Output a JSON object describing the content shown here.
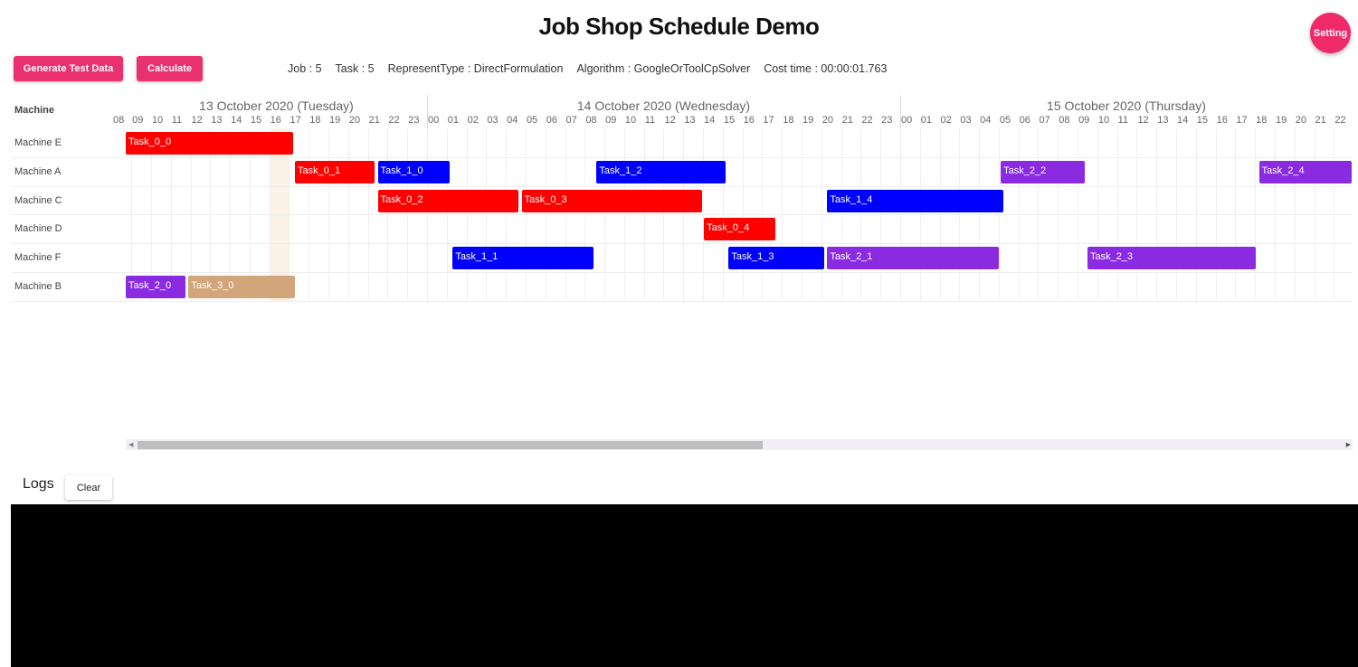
{
  "title": "Job Shop Schedule Demo",
  "setting_label": "Setting",
  "toolbar": {
    "generate_label": "Generate Test Data",
    "calculate_label": "Calculate"
  },
  "info": [
    "Job : 5",
    "Task : 5",
    "RepresentType : DirectFormulation",
    "Algorithm : GoogleOrToolCpSolver",
    "Cost time : 00:00:01.763"
  ],
  "gantt": {
    "machine_header": "Machine",
    "days": [
      {
        "label": "13 October 2020 (Tuesday)",
        "date": "2020-10-13",
        "hours": [
          "08",
          "09",
          "10",
          "11",
          "12",
          "13",
          "14",
          "15",
          "16",
          "17",
          "18",
          "19",
          "20",
          "21",
          "22",
          "23"
        ]
      },
      {
        "label": "14 October 2020 (Wednesday)",
        "date": "2020-10-14",
        "hours": [
          "00",
          "01",
          "02",
          "03",
          "04",
          "05",
          "06",
          "07",
          "08",
          "09",
          "10",
          "11",
          "12",
          "13",
          "14",
          "15",
          "16",
          "17",
          "18",
          "19",
          "20",
          "21",
          "22",
          "23"
        ]
      },
      {
        "label": "15 October 2020 (Thursday)",
        "date": "2020-10-15",
        "hours": [
          "00",
          "01",
          "02",
          "03",
          "04",
          "05",
          "06",
          "07",
          "08",
          "09",
          "10",
          "11",
          "12",
          "13",
          "14",
          "15",
          "16",
          "17",
          "18",
          "19",
          "20",
          "21",
          "22"
        ]
      }
    ],
    "machines": [
      "Machine E",
      "Machine A",
      "Machine C",
      "Machine D",
      "Machine F",
      "Machine B"
    ],
    "job_colors": {
      "0": "#ff0000",
      "1": "#0000ff",
      "2": "#8a2be2",
      "3": "#d2a67a"
    },
    "highlight_color": "#fbf1e4",
    "tasks": [
      {
        "name": "Task_0_0",
        "machine": "Machine E",
        "job": "0",
        "start": "2020-10-13T08:43",
        "end": "2020-10-13T17:15"
      },
      {
        "name": "Task_0_1",
        "machine": "Machine A",
        "job": "0",
        "start": "2020-10-13T17:18",
        "end": "2020-10-13T21:24"
      },
      {
        "name": "Task_1_0",
        "machine": "Machine A",
        "job": "1",
        "start": "2020-10-13T21:30",
        "end": "2020-10-14T01:12"
      },
      {
        "name": "Task_1_2",
        "machine": "Machine A",
        "job": "1",
        "start": "2020-10-14T08:36",
        "end": "2020-10-14T15:12"
      },
      {
        "name": "Task_2_2",
        "machine": "Machine A",
        "job": "2",
        "start": "2020-10-15T05:06",
        "end": "2020-10-15T09:24"
      },
      {
        "name": "Task_2_4",
        "machine": "Machine A",
        "job": "2",
        "start": "2020-10-15T18:12",
        "end": "2020-10-15T23:00"
      },
      {
        "name": "Task_0_2",
        "machine": "Machine C",
        "job": "0",
        "start": "2020-10-13T21:30",
        "end": "2020-10-14T04:42"
      },
      {
        "name": "Task_0_3",
        "machine": "Machine C",
        "job": "0",
        "start": "2020-10-14T04:48",
        "end": "2020-10-14T14:00"
      },
      {
        "name": "Task_1_4",
        "machine": "Machine C",
        "job": "1",
        "start": "2020-10-14T20:18",
        "end": "2020-10-15T05:18"
      },
      {
        "name": "Task_0_4",
        "machine": "Machine D",
        "job": "0",
        "start": "2020-10-14T14:03",
        "end": "2020-10-14T17:42"
      },
      {
        "name": "Task_1_1",
        "machine": "Machine F",
        "job": "1",
        "start": "2020-10-14T01:18",
        "end": "2020-10-14T08:30"
      },
      {
        "name": "Task_1_3",
        "machine": "Machine F",
        "job": "1",
        "start": "2020-10-14T15:18",
        "end": "2020-10-14T20:12"
      },
      {
        "name": "Task_2_1",
        "machine": "Machine F",
        "job": "2",
        "start": "2020-10-14T20:18",
        "end": "2020-10-15T05:03"
      },
      {
        "name": "Task_2_3",
        "machine": "Machine F",
        "job": "2",
        "start": "2020-10-15T09:30",
        "end": "2020-10-15T18:06"
      },
      {
        "name": "Task_2_0",
        "machine": "Machine B",
        "job": "2",
        "start": "2020-10-13T08:43",
        "end": "2020-10-13T11:48"
      },
      {
        "name": "Task_3_0",
        "machine": "Machine B",
        "job": "3",
        "start": "2020-10-13T11:54",
        "end": "2020-10-13T17:21"
      }
    ]
  },
  "logs": {
    "title": "Logs",
    "clear_label": "Clear"
  }
}
